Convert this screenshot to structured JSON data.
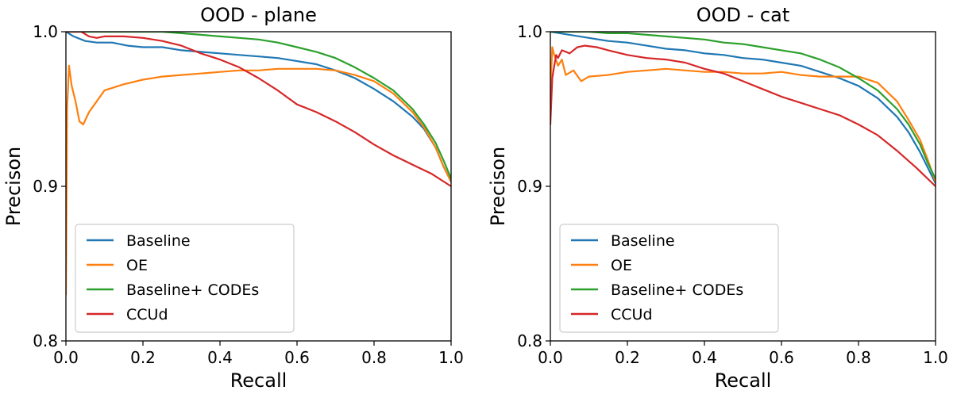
{
  "chart_data": [
    {
      "type": "line",
      "title": "OOD - plane",
      "xlabel": "Recall",
      "ylabel": "Precison",
      "xlim": [
        0.0,
        1.0
      ],
      "ylim": [
        0.8,
        1.0
      ],
      "xticks": [
        "0.0",
        "0.2",
        "0.4",
        "0.6",
        "0.8",
        "1.0"
      ],
      "yticks": [
        "0.8",
        "0.9",
        "1.0"
      ],
      "legend_position": "lower-left",
      "series": [
        {
          "name": "Baseline",
          "color": "#1f77b4",
          "x": [
            0.0,
            0.02,
            0.05,
            0.08,
            0.12,
            0.16,
            0.2,
            0.25,
            0.3,
            0.35,
            0.4,
            0.45,
            0.5,
            0.55,
            0.6,
            0.65,
            0.7,
            0.75,
            0.8,
            0.85,
            0.9,
            0.93,
            0.96,
            0.98,
            1.0
          ],
          "y": [
            1.0,
            0.997,
            0.994,
            0.993,
            0.993,
            0.991,
            0.99,
            0.99,
            0.988,
            0.987,
            0.986,
            0.985,
            0.984,
            0.983,
            0.981,
            0.979,
            0.975,
            0.97,
            0.963,
            0.955,
            0.945,
            0.937,
            0.925,
            0.913,
            0.903
          ]
        },
        {
          "name": "OE",
          "color": "#ff7f0e",
          "x": [
            0.0,
            0.003,
            0.008,
            0.015,
            0.025,
            0.035,
            0.045,
            0.06,
            0.08,
            0.1,
            0.15,
            0.2,
            0.25,
            0.3,
            0.35,
            0.4,
            0.45,
            0.5,
            0.55,
            0.6,
            0.65,
            0.7,
            0.75,
            0.8,
            0.85,
            0.9,
            0.93,
            0.96,
            0.98,
            1.0
          ],
          "y": [
            0.83,
            0.95,
            0.978,
            0.965,
            0.955,
            0.942,
            0.94,
            0.948,
            0.955,
            0.962,
            0.966,
            0.969,
            0.971,
            0.972,
            0.973,
            0.974,
            0.975,
            0.975,
            0.976,
            0.976,
            0.976,
            0.975,
            0.972,
            0.968,
            0.96,
            0.948,
            0.938,
            0.925,
            0.913,
            0.903
          ]
        },
        {
          "name": "Baseline+ CODEs",
          "color": "#2ca02c",
          "x": [
            0.0,
            0.05,
            0.1,
            0.2,
            0.25,
            0.3,
            0.35,
            0.4,
            0.45,
            0.5,
            0.55,
            0.6,
            0.65,
            0.7,
            0.75,
            0.8,
            0.85,
            0.9,
            0.93,
            0.96,
            0.98,
            1.0
          ],
          "y": [
            1.0,
            1.0,
            1.0,
            1.0,
            1.0,
            0.999,
            0.998,
            0.997,
            0.996,
            0.995,
            0.993,
            0.99,
            0.987,
            0.983,
            0.977,
            0.97,
            0.962,
            0.95,
            0.94,
            0.928,
            0.917,
            0.905
          ]
        },
        {
          "name": "CCUd",
          "color": "#d62728",
          "x": [
            0.0,
            0.04,
            0.06,
            0.08,
            0.1,
            0.15,
            0.2,
            0.25,
            0.3,
            0.35,
            0.4,
            0.45,
            0.5,
            0.55,
            0.6,
            0.65,
            0.7,
            0.75,
            0.8,
            0.85,
            0.9,
            0.95,
            1.0
          ],
          "y": [
            1.0,
            1.0,
            0.997,
            0.996,
            0.997,
            0.997,
            0.996,
            0.994,
            0.991,
            0.986,
            0.982,
            0.977,
            0.97,
            0.962,
            0.953,
            0.948,
            0.942,
            0.935,
            0.927,
            0.92,
            0.914,
            0.908,
            0.9
          ]
        }
      ]
    },
    {
      "type": "line",
      "title": "OOD - cat",
      "xlabel": "Recall",
      "ylabel": "Precison",
      "xlim": [
        0.0,
        1.0
      ],
      "ylim": [
        0.8,
        1.0
      ],
      "xticks": [
        "0.0",
        "0.2",
        "0.4",
        "0.6",
        "0.8",
        "1.0"
      ],
      "yticks": [
        "0.8",
        "0.9",
        "1.0"
      ],
      "legend_position": "lower-left",
      "series": [
        {
          "name": "Baseline",
          "color": "#1f77b4",
          "x": [
            0.0,
            0.05,
            0.1,
            0.15,
            0.2,
            0.25,
            0.3,
            0.35,
            0.4,
            0.45,
            0.5,
            0.55,
            0.6,
            0.65,
            0.7,
            0.75,
            0.8,
            0.85,
            0.9,
            0.93,
            0.96,
            0.98,
            1.0
          ],
          "y": [
            1.0,
            0.998,
            0.996,
            0.994,
            0.993,
            0.991,
            0.989,
            0.988,
            0.986,
            0.985,
            0.983,
            0.982,
            0.98,
            0.978,
            0.974,
            0.97,
            0.965,
            0.957,
            0.945,
            0.935,
            0.922,
            0.912,
            0.902
          ]
        },
        {
          "name": "OE",
          "color": "#ff7f0e",
          "x": [
            0.0,
            0.005,
            0.01,
            0.02,
            0.03,
            0.04,
            0.06,
            0.08,
            0.1,
            0.15,
            0.2,
            0.25,
            0.3,
            0.35,
            0.4,
            0.45,
            0.5,
            0.55,
            0.6,
            0.65,
            0.7,
            0.75,
            0.8,
            0.85,
            0.9,
            0.93,
            0.96,
            0.98,
            1.0
          ],
          "y": [
            0.96,
            0.99,
            0.985,
            0.978,
            0.982,
            0.972,
            0.975,
            0.968,
            0.971,
            0.972,
            0.974,
            0.975,
            0.976,
            0.975,
            0.974,
            0.974,
            0.973,
            0.973,
            0.974,
            0.972,
            0.971,
            0.971,
            0.971,
            0.967,
            0.955,
            0.943,
            0.93,
            0.917,
            0.903
          ]
        },
        {
          "name": "Baseline+ CODEs",
          "color": "#2ca02c",
          "x": [
            0.0,
            0.05,
            0.1,
            0.15,
            0.2,
            0.25,
            0.3,
            0.35,
            0.4,
            0.45,
            0.5,
            0.55,
            0.6,
            0.65,
            0.7,
            0.75,
            0.8,
            0.85,
            0.9,
            0.93,
            0.96,
            0.98,
            1.0
          ],
          "y": [
            1.0,
            1.0,
            1.0,
            0.999,
            0.999,
            0.998,
            0.997,
            0.996,
            0.995,
            0.993,
            0.992,
            0.99,
            0.988,
            0.986,
            0.982,
            0.977,
            0.97,
            0.962,
            0.95,
            0.94,
            0.927,
            0.915,
            0.905
          ]
        },
        {
          "name": "CCUd",
          "color": "#d62728",
          "x": [
            0.0,
            0.005,
            0.01,
            0.015,
            0.02,
            0.03,
            0.05,
            0.07,
            0.09,
            0.12,
            0.15,
            0.2,
            0.25,
            0.3,
            0.35,
            0.4,
            0.45,
            0.5,
            0.55,
            0.6,
            0.65,
            0.7,
            0.75,
            0.8,
            0.85,
            0.9,
            0.95,
            1.0
          ],
          "y": [
            0.94,
            0.97,
            0.978,
            0.985,
            0.983,
            0.988,
            0.986,
            0.99,
            0.991,
            0.99,
            0.988,
            0.985,
            0.983,
            0.982,
            0.98,
            0.976,
            0.973,
            0.968,
            0.963,
            0.958,
            0.954,
            0.95,
            0.946,
            0.94,
            0.933,
            0.923,
            0.912,
            0.9
          ]
        }
      ]
    }
  ]
}
